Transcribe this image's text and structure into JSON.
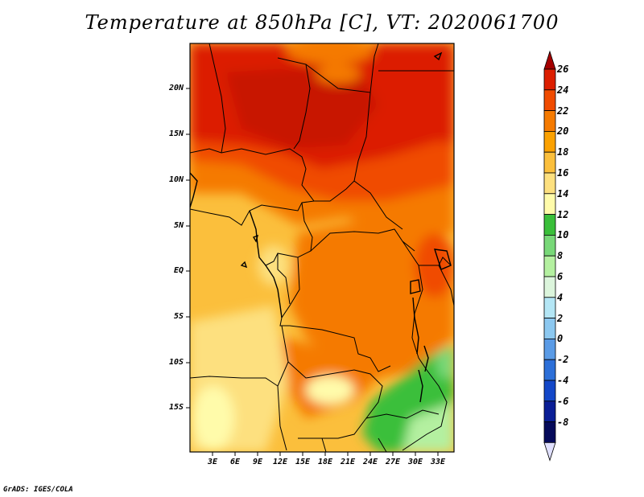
{
  "title": "Temperature at 850hPa [C], VT: 2020061700",
  "credit": "GrADS: IGES/COLA",
  "lat_labels": [
    "20N",
    "15N",
    "10N",
    "5N",
    "EQ",
    "5S",
    "10S",
    "15S"
  ],
  "lon_labels": [
    "3E",
    "6E",
    "9E",
    "12E",
    "15E",
    "18E",
    "21E",
    "24E",
    "27E",
    "30E",
    "33E"
  ],
  "colorbar": {
    "labels": [
      "26",
      "24",
      "22",
      "20",
      "18",
      "16",
      "14",
      "12",
      "10",
      "8",
      "6",
      "4",
      "2",
      "0",
      "-2",
      "-4",
      "-6",
      "-8"
    ],
    "colors": [
      "#a50000",
      "#dc1e00",
      "#f04b00",
      "#f57a00",
      "#fba100",
      "#fbbf3c",
      "#fde07f",
      "#fffbaa",
      "#3abf3a",
      "#78d878",
      "#b4f0a0",
      "#dcf5dc",
      "#b4e6f5",
      "#8cc8f0",
      "#5a9be6",
      "#2c6fd8",
      "#1347c8",
      "#0a1e96",
      "#050a5a",
      "#e0e0ff"
    ]
  }
}
